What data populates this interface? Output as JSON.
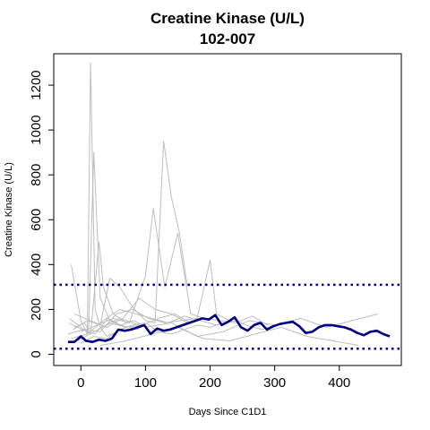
{
  "chart_data": {
    "type": "line",
    "title": "Creatine Kinase (U/L)",
    "subtitle": "102-007",
    "xlabel": "Days Since C1D1",
    "ylabel": "Creatine Kinase (U/L)",
    "xlim": [
      -42,
      496
    ],
    "ylim": [
      -50,
      1340
    ],
    "x_ticks": [
      0,
      100,
      200,
      300,
      400
    ],
    "y_ticks": [
      0,
      200,
      400,
      600,
      800,
      1000,
      1200
    ],
    "grid": false,
    "reference_lines": [
      {
        "y": 310,
        "style": "dotted",
        "color": "#00008B"
      },
      {
        "y": 25,
        "style": "dotted",
        "color": "#00008B"
      }
    ],
    "colors": {
      "highlight": "#000080",
      "background_series": "#BEBEBE",
      "reference": "#00008B"
    },
    "series": [
      {
        "highlight": true,
        "x": [
          -20,
          -10,
          0,
          8,
          18,
          28,
          38,
          48,
          58,
          68,
          78,
          88,
          98,
          108,
          118,
          128,
          138,
          148,
          158,
          168,
          178,
          188,
          198,
          208,
          218,
          228,
          238,
          248,
          258,
          268,
          278,
          288,
          298,
          308,
          318,
          328,
          338,
          348,
          358,
          368,
          378,
          388,
          398,
          408,
          418,
          428,
          438,
          448,
          458,
          468,
          478
        ],
        "y": [
          55,
          55,
          80,
          60,
          55,
          65,
          60,
          70,
          110,
          105,
          110,
          120,
          130,
          90,
          115,
          105,
          110,
          120,
          130,
          140,
          150,
          160,
          155,
          175,
          130,
          145,
          165,
          120,
          105,
          130,
          140,
          110,
          125,
          135,
          140,
          145,
          125,
          95,
          100,
          120,
          130,
          130,
          125,
          120,
          110,
          95,
          85,
          100,
          105,
          90,
          80
        ]
      },
      {
        "x": [
          -15,
          0,
          10,
          15,
          22,
          30,
          40,
          55
        ],
        "y": [
          400,
          150,
          90,
          1300,
          200,
          120,
          80,
          100
        ]
      },
      {
        "x": [
          -10,
          5,
          12,
          20,
          30,
          45,
          60,
          75,
          90
        ],
        "y": [
          120,
          140,
          110,
          900,
          250,
          150,
          130,
          120,
          110
        ]
      },
      {
        "x": [
          -18,
          0,
          15,
          28,
          35,
          50,
          70
        ],
        "y": [
          160,
          120,
          90,
          500,
          300,
          180,
          140
        ]
      },
      {
        "x": [
          -12,
          10,
          30,
          45,
          60,
          80,
          100,
          115,
          128,
          140,
          152,
          165
        ],
        "y": [
          110,
          150,
          130,
          340,
          300,
          210,
          150,
          140,
          950,
          700,
          550,
          300
        ]
      },
      {
        "x": [
          0,
          25,
          50,
          75,
          100,
          112,
          130,
          150,
          170,
          190
        ],
        "y": [
          100,
          130,
          160,
          140,
          350,
          650,
          300,
          540,
          180,
          160
        ]
      },
      {
        "x": [
          -20,
          5,
          30,
          55,
          80,
          105,
          130,
          155,
          180,
          200,
          210,
          230
        ],
        "y": [
          90,
          110,
          100,
          180,
          200,
          160,
          140,
          150,
          160,
          420,
          180,
          150
        ]
      },
      {
        "x": [
          -15,
          10,
          35,
          60,
          85,
          110,
          135,
          160,
          185,
          210
        ],
        "y": [
          70,
          90,
          150,
          200,
          180,
          160,
          140,
          170,
          150,
          130
        ]
      },
      {
        "x": [
          -10,
          15,
          40,
          65,
          90,
          115,
          140,
          165,
          190,
          215,
          240,
          265,
          290
        ],
        "y": [
          180,
          150,
          120,
          160,
          250,
          200,
          180,
          140,
          160,
          150,
          140,
          170,
          130
        ]
      },
      {
        "x": [
          0,
          20,
          40,
          60,
          80,
          100,
          120,
          140,
          160,
          180,
          200,
          220,
          240,
          260,
          280,
          300
        ],
        "y": [
          50,
          80,
          70,
          110,
          130,
          140,
          100,
          90,
          110,
          130,
          120,
          140,
          150,
          125,
          110,
          130
        ]
      },
      {
        "x": [
          -5,
          20,
          45,
          70,
          95,
          120,
          145,
          170
        ],
        "y": [
          60,
          100,
          140,
          120,
          130,
          160,
          180,
          140
        ]
      },
      {
        "x": [
          20,
          60,
          100,
          140,
          180,
          220,
          260,
          300,
          340,
          380,
          420,
          460
        ],
        "y": [
          100,
          160,
          120,
          140,
          80,
          100,
          150,
          130,
          160,
          120,
          150,
          180
        ]
      },
      {
        "x": [
          30,
          70,
          110,
          150,
          190,
          230,
          270,
          310,
          350,
          390,
          430
        ],
        "y": [
          40,
          60,
          90,
          120,
          70,
          60,
          90,
          120,
          80,
          60,
          40
        ]
      },
      {
        "x": [
          -18,
          2,
          22,
          42,
          62,
          82,
          102
        ],
        "y": [
          140,
          110,
          90,
          160,
          130,
          150,
          120
        ]
      }
    ]
  }
}
